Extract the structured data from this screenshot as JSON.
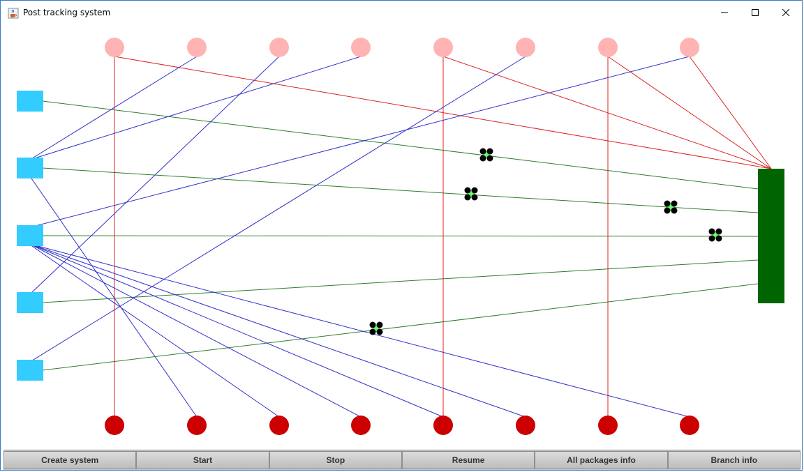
{
  "window": {
    "title": "Post tracking system",
    "app_icon": "java-coffee-cup-icon",
    "controls": [
      "minimize-icon",
      "maximize-icon",
      "close-icon"
    ]
  },
  "toolbar": {
    "buttons": [
      {
        "key": "create",
        "label": "Create system"
      },
      {
        "key": "start",
        "label": "Start"
      },
      {
        "key": "stop",
        "label": "Stop"
      },
      {
        "key": "resume",
        "label": "Resume"
      },
      {
        "key": "all_packages",
        "label": "All packages info"
      },
      {
        "key": "branch_info",
        "label": "Branch info"
      }
    ]
  },
  "colors": {
    "branch": "#33ccff",
    "hub": "#006400",
    "sender": "#ffb3b3",
    "receiver": "#cc0000",
    "hub_line": "#2e7d2e",
    "package_line_blue": "#3030cc",
    "package_line_red": "#dd2222",
    "truck_wheel": "#000000",
    "truck_body": "#66ff66"
  }
}
